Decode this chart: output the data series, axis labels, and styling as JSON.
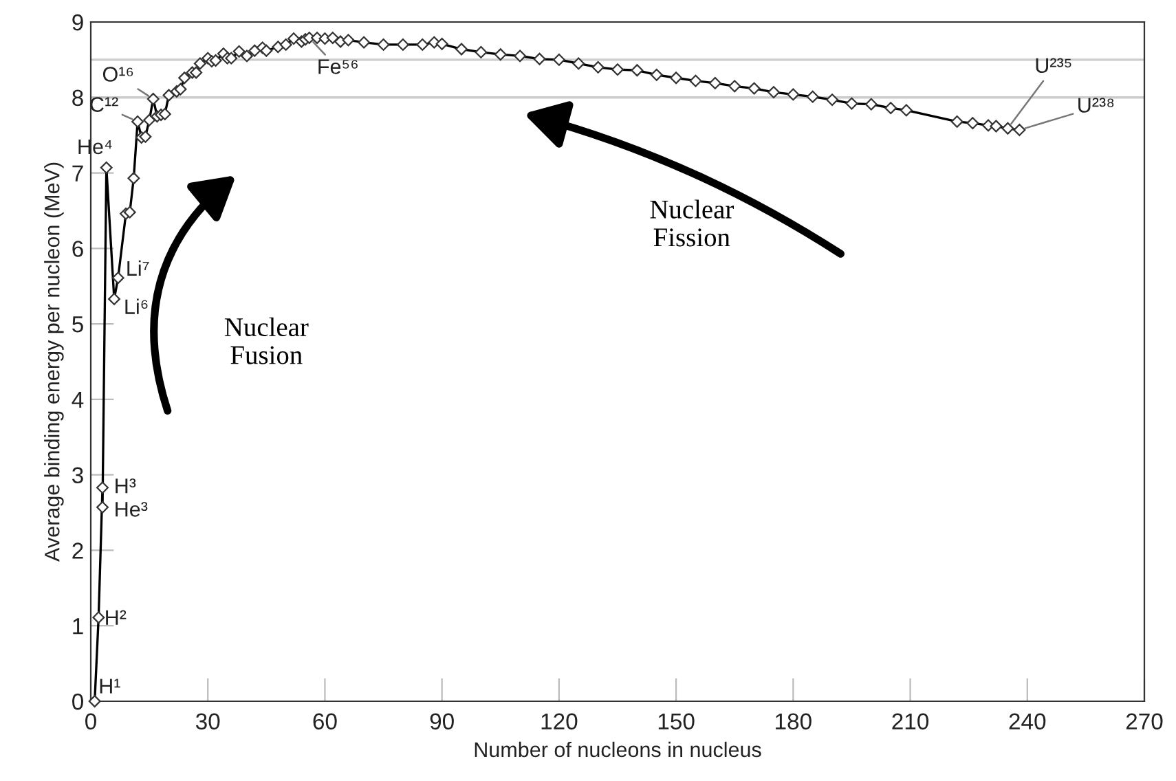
{
  "chart_data": {
    "type": "line",
    "xlabel": "Number of nucleons in nucleus",
    "ylabel": "Average binding energy per nucleon (MeV)",
    "xlim": [
      0,
      270
    ],
    "xticks": [
      0,
      30,
      60,
      90,
      120,
      150,
      180,
      210,
      240,
      270
    ],
    "ylim": [
      0,
      9
    ],
    "yticks": [
      0,
      1,
      2,
      3,
      4,
      5,
      6,
      7,
      8,
      9
    ],
    "grid": false,
    "marker": "diamond",
    "line_style": "solid",
    "series": [
      {
        "color": "#000000",
        "x": [
          1,
          2,
          3,
          3,
          4,
          6,
          7,
          9,
          10,
          11,
          12,
          13,
          14,
          15,
          16,
          17,
          18,
          19,
          20,
          22,
          23,
          24,
          26,
          27,
          28,
          30,
          31,
          32,
          34,
          35,
          36,
          38,
          40,
          42,
          44,
          45,
          48,
          50,
          52,
          54,
          55,
          56,
          58,
          60,
          62,
          64,
          66,
          70,
          75,
          80,
          85,
          88,
          90,
          95,
          100,
          105,
          110,
          115,
          120,
          125,
          130,
          135,
          140,
          145,
          150,
          155,
          160,
          165,
          170,
          175,
          180,
          185,
          190,
          195,
          200,
          205,
          209,
          222,
          226,
          230,
          232,
          235,
          238
        ],
        "values": [
          0,
          1.11,
          2.83,
          2.57,
          7.07,
          5.33,
          5.61,
          6.46,
          6.48,
          6.93,
          7.68,
          7.47,
          7.48,
          7.7,
          7.98,
          7.75,
          7.77,
          7.78,
          8.03,
          8.08,
          8.11,
          8.26,
          8.33,
          8.33,
          8.45,
          8.52,
          8.48,
          8.49,
          8.58,
          8.52,
          8.52,
          8.61,
          8.55,
          8.62,
          8.66,
          8.62,
          8.67,
          8.7,
          8.78,
          8.74,
          8.77,
          8.79,
          8.79,
          8.78,
          8.79,
          8.74,
          8.76,
          8.73,
          8.7,
          8.7,
          8.7,
          8.73,
          8.71,
          8.64,
          8.6,
          8.57,
          8.55,
          8.51,
          8.5,
          8.45,
          8.4,
          8.37,
          8.36,
          8.3,
          8.26,
          8.22,
          8.19,
          8.15,
          8.12,
          8.07,
          8.04,
          8.01,
          7.97,
          7.92,
          7.91,
          7.86,
          7.83,
          7.68,
          7.66,
          7.63,
          7.62,
          7.59,
          7.57
        ]
      }
    ],
    "ref_lines": [
      {
        "axis": "y",
        "value": 8.5,
        "color": "#cccccc"
      },
      {
        "axis": "y",
        "value": 8,
        "color": "#cccccc"
      }
    ],
    "annotations": [
      {
        "text": "H¹",
        "x": 1,
        "y": 0
      },
      {
        "text": "H²",
        "x": 2,
        "y": 1.11
      },
      {
        "text": "H³",
        "x": 3,
        "y": 2.83
      },
      {
        "text": "He³",
        "x": 3,
        "y": 2.57
      },
      {
        "text": "He⁴",
        "x": 4,
        "y": 7.07
      },
      {
        "text": "Li⁷",
        "x": 7,
        "y": 5.61
      },
      {
        "text": "Li⁶",
        "x": 6,
        "y": 5.33
      },
      {
        "text": "C¹²",
        "x": 12,
        "y": 7.68
      },
      {
        "text": "O¹⁶",
        "x": 16,
        "y": 7.98
      },
      {
        "text": "Fe⁵⁶",
        "x": 56,
        "y": 8.79
      },
      {
        "text": "U²³⁵",
        "x": 235,
        "y": 7.59
      },
      {
        "text": "U²³⁸",
        "x": 238,
        "y": 7.57
      },
      "Nuclear\nFusion",
      "Nuclear\nFission"
    ]
  }
}
